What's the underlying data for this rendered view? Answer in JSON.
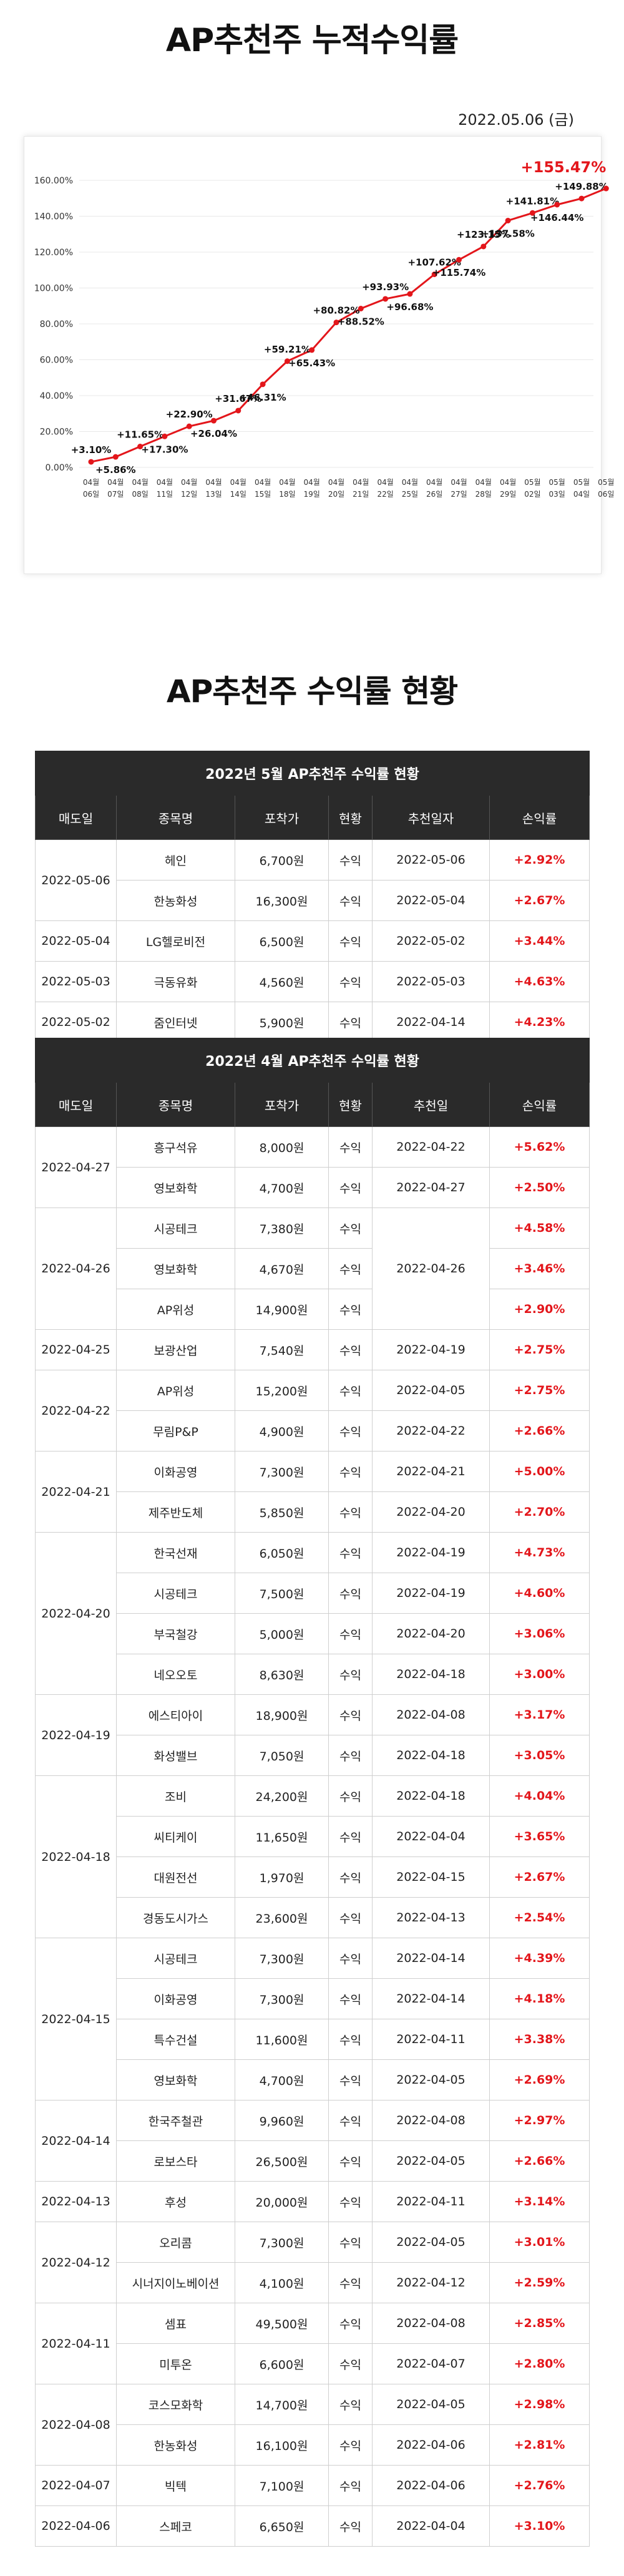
{
  "page": {
    "title": "AP추천주 누적수익률",
    "date": "2022.05.06 (금)",
    "section_title": "AP추천주 수익률 현황"
  },
  "chart_data": {
    "type": "line",
    "color": "#e3161b",
    "ylim": [
      0,
      160
    ],
    "yticks": [
      "0.00%",
      "20.00%",
      "40.00%",
      "60.00%",
      "80.00%",
      "100.00%",
      "120.00%",
      "140.00%",
      "160.00%"
    ],
    "x": [
      "04월 06일",
      "04월 07일",
      "04월 08일",
      "04월 11일",
      "04월 12일",
      "04월 13일",
      "04월 14일",
      "04월 15일",
      "04월 18일",
      "04월 19일",
      "04월 20일",
      "04월 21일",
      "04월 22일",
      "04월 25일",
      "04월 26일",
      "04월 27일",
      "04월 28일",
      "04월 29일",
      "05월 02일",
      "05월 03일",
      "05월 04일",
      "05월 06일"
    ],
    "values": [
      3.1,
      5.86,
      11.65,
      17.3,
      22.9,
      26.04,
      31.67,
      46.31,
      59.21,
      65.43,
      80.82,
      88.52,
      93.93,
      96.68,
      107.62,
      115.74,
      123.15,
      137.58,
      141.81,
      146.44,
      149.88,
      155.47
    ],
    "labels": [
      "+3.10%",
      "+5.86%",
      "+11.65%",
      "+17.30%",
      "+22.90%",
      "+26.04%",
      "+31.67%",
      "+46.31%",
      "+59.21%",
      "+65.43%",
      "+80.82%",
      "+88.52%",
      "+93.93%",
      "+96.68%",
      "+107.62%",
      "+115.74%",
      "+123.15%",
      "+137.58%",
      "+141.81%",
      "+146.44%",
      "+149.88%",
      "+155.47%"
    ],
    "grid": true
  },
  "tables": {
    "may": {
      "caption": "2022년 5월 AP추천주 수익률 현황",
      "headers": [
        "매도일",
        "종목명",
        "포착가",
        "현황",
        "추천일자",
        "손익률"
      ],
      "groups": [
        {
          "date": "2022-05-06",
          "rows": [
            {
              "name": "헤인",
              "price": "6,700원",
              "status": "수익",
              "rec": "2022-05-06",
              "rate": "+2.92%"
            },
            {
              "name": "한농화성",
              "price": "16,300원",
              "status": "수익",
              "rec": "2022-05-04",
              "rate": "+2.67%"
            }
          ]
        },
        {
          "date": "2022-05-04",
          "rows": [
            {
              "name": "LG헬로비전",
              "price": "6,500원",
              "status": "수익",
              "rec": "2022-05-02",
              "rate": "+3.44%"
            }
          ]
        },
        {
          "date": "2022-05-03",
          "rows": [
            {
              "name": "극동유화",
              "price": "4,560원",
              "status": "수익",
              "rec": "2022-05-03",
              "rate": "+4.63%"
            }
          ]
        },
        {
          "date": "2022-05-02",
          "rows": [
            {
              "name": "줌인터넷",
              "price": "5,900원",
              "status": "수익",
              "rec": "2022-04-14",
              "rate": "+4.23%"
            }
          ]
        }
      ]
    },
    "april": {
      "caption": "2022년 4월 AP추천주 수익률 현황",
      "headers": [
        "매도일",
        "종목명",
        "포착가",
        "현황",
        "추천일",
        "손익률"
      ],
      "groups": [
        {
          "date": "2022-04-27",
          "rows": [
            {
              "name": "흥구석유",
              "price": "8,000원",
              "status": "수익",
              "rec": "2022-04-22",
              "rate": "+5.62%"
            },
            {
              "name": "영보화학",
              "price": "4,700원",
              "status": "수익",
              "rec": "2022-04-27",
              "rate": "+2.50%"
            }
          ]
        },
        {
          "date": "2022-04-26",
          "rec_merged": "2022-04-26",
          "rows": [
            {
              "name": "시공테크",
              "price": "7,380원",
              "status": "수익",
              "rate": "+4.58%"
            },
            {
              "name": "영보화학",
              "price": "4,670원",
              "status": "수익",
              "rate": "+3.46%"
            },
            {
              "name": "AP위성",
              "price": "14,900원",
              "status": "수익",
              "rate": "+2.90%"
            }
          ]
        },
        {
          "date": "2022-04-25",
          "rows": [
            {
              "name": "보광산업",
              "price": "7,540원",
              "status": "수익",
              "rec": "2022-04-19",
              "rate": "+2.75%"
            }
          ]
        },
        {
          "date": "2022-04-22",
          "rows": [
            {
              "name": "AP위성",
              "price": "15,200원",
              "status": "수익",
              "rec": "2022-04-05",
              "rate": "+2.75%"
            },
            {
              "name": "무림P&P",
              "price": "4,900원",
              "status": "수익",
              "rec": "2022-04-22",
              "rate": "+2.66%"
            }
          ]
        },
        {
          "date": "2022-04-21",
          "rows": [
            {
              "name": "이화공영",
              "price": "7,300원",
              "status": "수익",
              "rec": "2022-04-21",
              "rate": "+5.00%"
            },
            {
              "name": "제주반도체",
              "price": "5,850원",
              "status": "수익",
              "rec": "2022-04-20",
              "rate": "+2.70%"
            }
          ]
        },
        {
          "date": "2022-04-20",
          "rows": [
            {
              "name": "한국선재",
              "price": "6,050원",
              "status": "수익",
              "rec": "2022-04-19",
              "rate": "+4.73%"
            },
            {
              "name": "시공테크",
              "price": "7,500원",
              "status": "수익",
              "rec": "2022-04-19",
              "rate": "+4.60%"
            },
            {
              "name": "부국철강",
              "price": "5,000원",
              "status": "수익",
              "rec": "2022-04-20",
              "rate": "+3.06%"
            },
            {
              "name": "네오오토",
              "price": "8,630원",
              "status": "수익",
              "rec": "2022-04-18",
              "rate": "+3.00%"
            }
          ]
        },
        {
          "date": "2022-04-19",
          "rows": [
            {
              "name": "에스티아이",
              "price": "18,900원",
              "status": "수익",
              "rec": "2022-04-08",
              "rate": "+3.17%"
            },
            {
              "name": "화성밸브",
              "price": "7,050원",
              "status": "수익",
              "rec": "2022-04-18",
              "rate": "+3.05%"
            }
          ]
        },
        {
          "date": "2022-04-18",
          "rows": [
            {
              "name": "조비",
              "price": "24,200원",
              "status": "수익",
              "rec": "2022-04-18",
              "rate": "+4.04%"
            },
            {
              "name": "씨티케이",
              "price": "11,650원",
              "status": "수익",
              "rec": "2022-04-04",
              "rate": "+3.65%"
            },
            {
              "name": "대원전선",
              "price": "1,970원",
              "status": "수익",
              "rec": "2022-04-15",
              "rate": "+2.67%"
            },
            {
              "name": "경동도시가스",
              "price": "23,600원",
              "status": "수익",
              "rec": "2022-04-13",
              "rate": "+2.54%"
            }
          ]
        },
        {
          "date": "2022-04-15",
          "rows": [
            {
              "name": "시공테크",
              "price": "7,300원",
              "status": "수익",
              "rec": "2022-04-14",
              "rate": "+4.39%"
            },
            {
              "name": "이화공영",
              "price": "7,300원",
              "status": "수익",
              "rec": "2022-04-14",
              "rate": "+4.18%"
            },
            {
              "name": "특수건설",
              "price": "11,600원",
              "status": "수익",
              "rec": "2022-04-11",
              "rate": "+3.38%"
            },
            {
              "name": "영보화학",
              "price": "4,700원",
              "status": "수익",
              "rec": "2022-04-05",
              "rate": "+2.69%"
            }
          ]
        },
        {
          "date": "2022-04-14",
          "rows": [
            {
              "name": "한국주철관",
              "price": "9,960원",
              "status": "수익",
              "rec": "2022-04-08",
              "rate": "+2.97%"
            },
            {
              "name": "로보스타",
              "price": "26,500원",
              "status": "수익",
              "rec": "2022-04-05",
              "rate": "+2.66%"
            }
          ]
        },
        {
          "date": "2022-04-13",
          "rows": [
            {
              "name": "후성",
              "price": "20,000원",
              "status": "수익",
              "rec": "2022-04-11",
              "rate": "+3.14%"
            }
          ]
        },
        {
          "date": "2022-04-12",
          "rows": [
            {
              "name": "오리콤",
              "price": "7,300원",
              "status": "수익",
              "rec": "2022-04-05",
              "rate": "+3.01%"
            },
            {
              "name": "시너지이노베이션",
              "price": "4,100원",
              "status": "수익",
              "rec": "2022-04-12",
              "rate": "+2.59%"
            }
          ]
        },
        {
          "date": "2022-04-11",
          "rows": [
            {
              "name": "셈표",
              "price": "49,500원",
              "status": "수익",
              "rec": "2022-04-08",
              "rate": "+2.85%"
            },
            {
              "name": "미투온",
              "price": "6,600원",
              "status": "수익",
              "rec": "2022-04-07",
              "rate": "+2.80%"
            }
          ]
        },
        {
          "date": "2022-04-08",
          "rows": [
            {
              "name": "코스모화학",
              "price": "14,700원",
              "status": "수익",
              "rec": "2022-04-05",
              "rate": "+2.98%"
            },
            {
              "name": "한농화성",
              "price": "16,100원",
              "status": "수익",
              "rec": "2022-04-06",
              "rate": "+2.81%"
            }
          ]
        },
        {
          "date": "2022-04-07",
          "rows": [
            {
              "name": "빅텍",
              "price": "7,100원",
              "status": "수익",
              "rec": "2022-04-06",
              "rate": "+2.76%"
            }
          ]
        },
        {
          "date": "2022-04-06",
          "rows": [
            {
              "name": "스페코",
              "price": "6,650원",
              "status": "수익",
              "rec": "2022-04-04",
              "rate": "+3.10%"
            }
          ]
        }
      ]
    }
  }
}
